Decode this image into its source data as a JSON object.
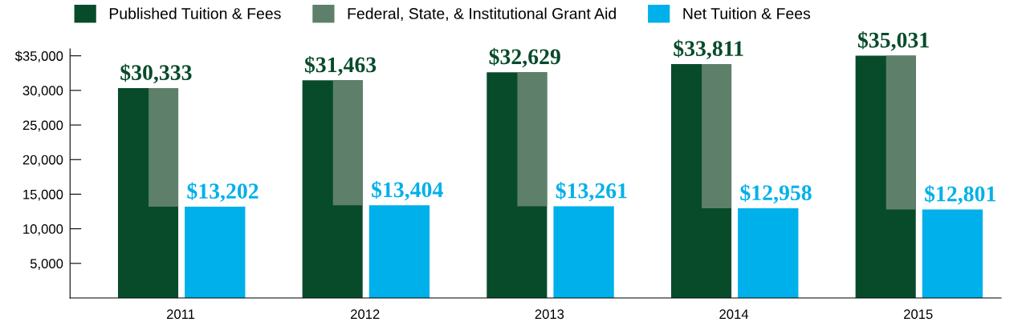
{
  "chart_data": {
    "type": "bar",
    "categories": [
      "2011",
      "2012",
      "2013",
      "2014",
      "2015"
    ],
    "series": [
      {
        "name": "Published Tuition & Fees",
        "color": "#084b2b",
        "values": [
          30333,
          31463,
          32629,
          33811,
          35031
        ],
        "value_labels": [
          "$30,333",
          "$31,463",
          "$32,629",
          "$33,811",
          "$35,031"
        ]
      },
      {
        "name": "Federal, State, & Institutional Grant Aid",
        "color": "#5e806a",
        "base": [
          13202,
          13404,
          13261,
          12958,
          12801
        ],
        "values": [
          17131,
          18059,
          19368,
          20853,
          22230
        ]
      },
      {
        "name": "Net Tuition & Fees",
        "color": "#00b0ea",
        "values": [
          13202,
          13404,
          13261,
          12958,
          12801
        ],
        "value_labels": [
          "$13,202",
          "$13,404",
          "$13,261",
          "$12,958",
          "$12,801"
        ]
      }
    ],
    "ylim": [
      0,
      36000
    ],
    "yticks": [
      {
        "value": 5000,
        "label": "5,000"
      },
      {
        "value": 10000,
        "label": "10,000"
      },
      {
        "value": 15000,
        "label": "15,000"
      },
      {
        "value": 20000,
        "label": "20,000"
      },
      {
        "value": 25000,
        "label": "25,000"
      },
      {
        "value": 30000,
        "label": "30,000"
      },
      {
        "value": 35000,
        "label": "$35,000"
      }
    ],
    "grid": false,
    "legend": "top"
  }
}
